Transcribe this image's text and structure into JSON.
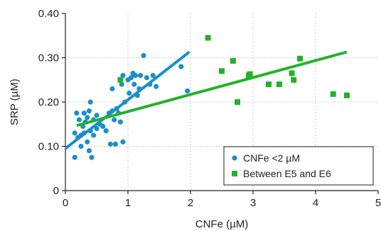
{
  "chart_data": {
    "type": "scatter",
    "xlabel": "CNFe (µM)",
    "ylabel": "SRP (µM)",
    "xlim": [
      0,
      5
    ],
    "ylim": [
      0,
      0.4
    ],
    "xticks": [
      0,
      1,
      2,
      3,
      4,
      5
    ],
    "xtick_labels": [
      "0",
      "1",
      "2",
      "3",
      "4",
      "5"
    ],
    "yticks": [
      0,
      0.1,
      0.2,
      0.3,
      0.4
    ],
    "ytick_labels": [
      "0",
      "0.10",
      "0.20",
      "0.30",
      "0.40"
    ],
    "grid": true,
    "legend_position": "bottom-right",
    "series": [
      {
        "name": "CNFe <2 µM",
        "marker": "circle",
        "color": "#1a8fc9",
        "points": [
          [
            0.15,
            0.075
          ],
          [
            0.15,
            0.13
          ],
          [
            0.18,
            0.175
          ],
          [
            0.2,
            0.12
          ],
          [
            0.22,
            0.16
          ],
          [
            0.25,
            0.1
          ],
          [
            0.25,
            0.125
          ],
          [
            0.28,
            0.145
          ],
          [
            0.3,
            0.175
          ],
          [
            0.3,
            0.13
          ],
          [
            0.32,
            0.155
          ],
          [
            0.35,
            0.11
          ],
          [
            0.35,
            0.165
          ],
          [
            0.38,
            0.18
          ],
          [
            0.38,
            0.09
          ],
          [
            0.4,
            0.2
          ],
          [
            0.4,
            0.135
          ],
          [
            0.42,
            0.075
          ],
          [
            0.45,
            0.16
          ],
          [
            0.45,
            0.125
          ],
          [
            0.5,
            0.14
          ],
          [
            0.5,
            0.17
          ],
          [
            0.55,
            0.15
          ],
          [
            0.6,
            0.145
          ],
          [
            0.65,
            0.135
          ],
          [
            0.7,
            0.175
          ],
          [
            0.72,
            0.105
          ],
          [
            0.75,
            0.18
          ],
          [
            0.75,
            0.23
          ],
          [
            0.78,
            0.16
          ],
          [
            0.8,
            0.105
          ],
          [
            0.82,
            0.185
          ],
          [
            0.85,
            0.175
          ],
          [
            0.88,
            0.155
          ],
          [
            0.9,
            0.24
          ],
          [
            0.92,
            0.11
          ],
          [
            0.92,
            0.26
          ],
          [
            0.95,
            0.2
          ],
          [
            1.0,
            0.25
          ],
          [
            1.02,
            0.22
          ],
          [
            1.05,
            0.255
          ],
          [
            1.08,
            0.265
          ],
          [
            1.1,
            0.24
          ],
          [
            1.12,
            0.26
          ],
          [
            1.15,
            0.215
          ],
          [
            1.18,
            0.23
          ],
          [
            1.2,
            0.26
          ],
          [
            1.25,
            0.305
          ],
          [
            1.3,
            0.255
          ],
          [
            1.35,
            0.24
          ],
          [
            1.4,
            0.26
          ],
          [
            1.45,
            0.235
          ],
          [
            1.85,
            0.28
          ],
          [
            1.95,
            0.225
          ]
        ],
        "fit": [
          [
            0,
            0.095
          ],
          [
            1.98,
            0.313
          ]
        ]
      },
      {
        "name": "Between E5 and E6",
        "marker": "square",
        "color": "#22b22a",
        "points": [
          [
            0.88,
            0.25
          ],
          [
            2.28,
            0.345
          ],
          [
            2.5,
            0.27
          ],
          [
            2.68,
            0.293
          ],
          [
            2.75,
            0.2
          ],
          [
            2.93,
            0.26
          ],
          [
            2.95,
            0.263
          ],
          [
            3.25,
            0.24
          ],
          [
            3.42,
            0.24
          ],
          [
            3.62,
            0.265
          ],
          [
            3.65,
            0.25
          ],
          [
            3.75,
            0.298
          ],
          [
            4.28,
            0.218
          ],
          [
            4.5,
            0.215
          ]
        ],
        "fit": [
          [
            0.18,
            0.147
          ],
          [
            4.5,
            0.313
          ]
        ]
      }
    ]
  }
}
